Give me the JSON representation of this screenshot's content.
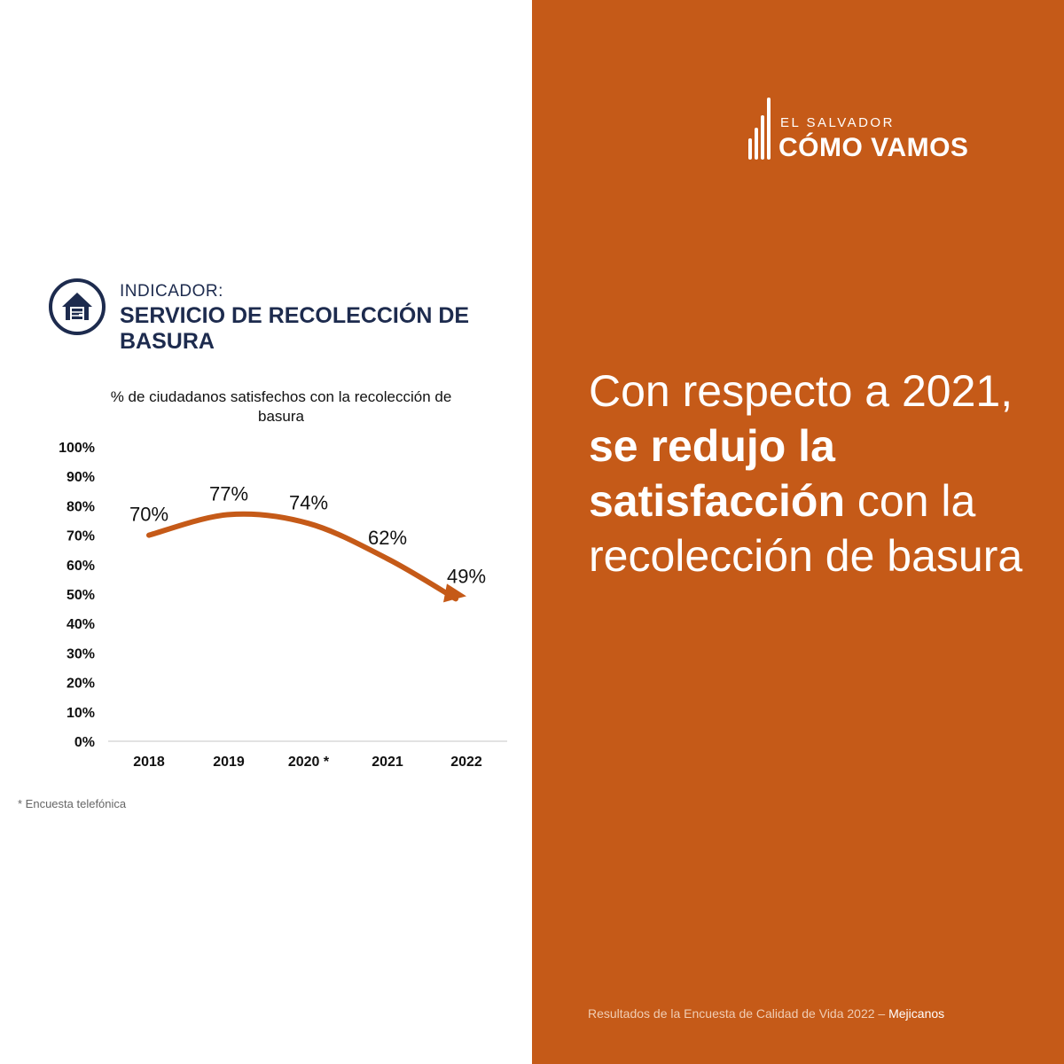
{
  "indicator": {
    "label": "INDICADOR:",
    "title": "SERVICIO DE RECOLECCIÓN DE BASURA",
    "icon": "house-icon"
  },
  "brand": {
    "top": "EL SALVADOR",
    "main": "CÓMO VAMOS",
    "icon": "bar-logo-icon"
  },
  "headline": {
    "part1": "Con respecto a 2021, ",
    "bold": "se redujo la satisfacción",
    "part2": " con la recolección de basura"
  },
  "footnote": "* Encuesta telefónica",
  "source": {
    "text": "Resultados de la Encuesta de Calidad de Vida 2022 – ",
    "place": "Mejicanos"
  },
  "colors": {
    "accent": "#c55a18",
    "navy": "#1d2b4e",
    "text": "#111111"
  },
  "chart_data": {
    "type": "line",
    "title": "% de ciudadanos satisfechos con la recolección de basura",
    "categories": [
      "2018",
      "2019",
      "2020 *",
      "2021",
      "2022"
    ],
    "values": [
      70,
      77,
      74,
      62,
      49
    ],
    "data_labels": [
      "70%",
      "77%",
      "74%",
      "62%",
      "49%"
    ],
    "yticks": [
      "0%",
      "10%",
      "20%",
      "30%",
      "40%",
      "50%",
      "60%",
      "70%",
      "80%",
      "90%",
      "100%"
    ],
    "ylim": [
      0,
      100
    ],
    "xlabel": "",
    "ylabel": "",
    "grid": false,
    "line_style": "smooth arrow",
    "color": "#c55a18"
  }
}
